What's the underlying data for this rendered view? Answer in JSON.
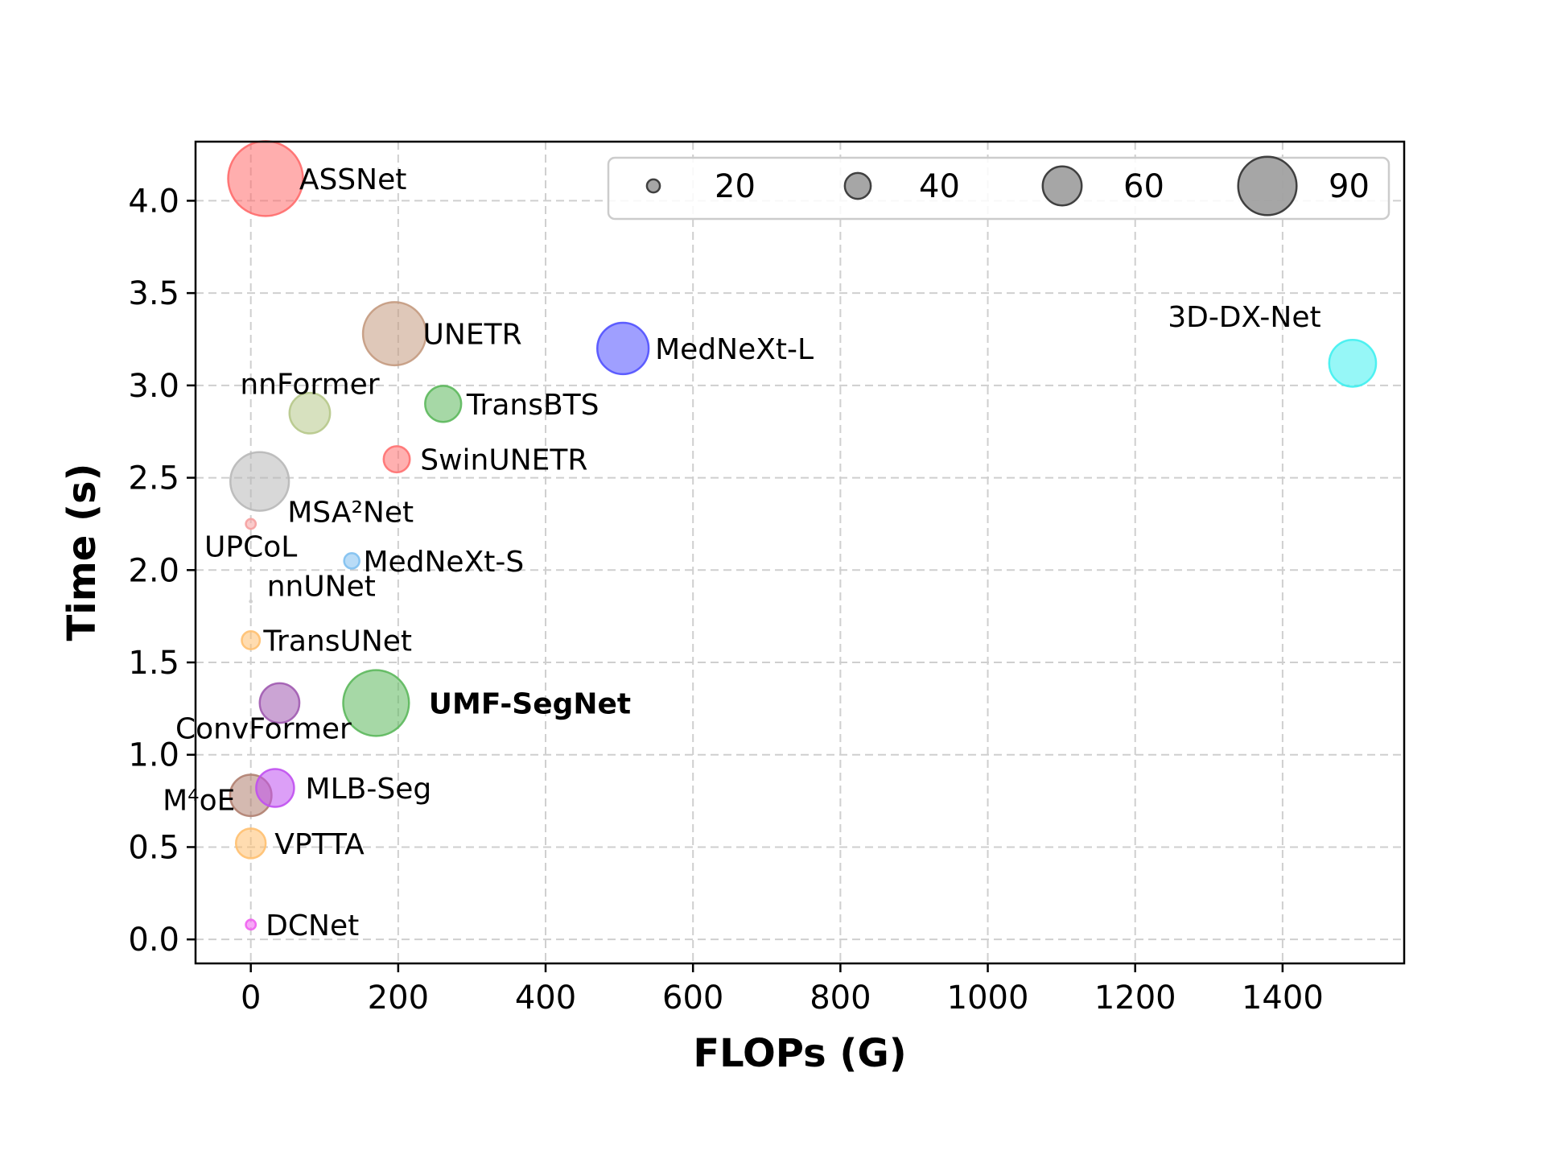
{
  "chart_data": {
    "type": "scatter",
    "subtype": "bubble",
    "title": "",
    "xlabel": "FLOPs (G)",
    "ylabel": "Time (s)",
    "xlim": [
      -75,
      1565
    ],
    "ylim": [
      -0.13,
      4.32
    ],
    "xticks": [
      0,
      200,
      400,
      600,
      800,
      1000,
      1200,
      1400
    ],
    "yticks": [
      0.0,
      0.5,
      1.0,
      1.5,
      2.0,
      2.5,
      3.0,
      3.5,
      4.0
    ],
    "grid": true,
    "legend": {
      "placement": "top-right",
      "entries": [
        {
          "label": "20",
          "size": 20
        },
        {
          "label": "40",
          "size": 40
        },
        {
          "label": "60",
          "size": 60
        },
        {
          "label": "90",
          "size": 90
        }
      ],
      "color": "#808080"
    },
    "points": [
      {
        "name": "ASSNet",
        "x": 20,
        "y": 4.12,
        "size": 83,
        "color": "#ff6b6b"
      },
      {
        "name": "UNETR",
        "x": 195,
        "y": 3.28,
        "size": 70,
        "color": "#c49a80"
      },
      {
        "name": "MedNeXt-L",
        "x": 505,
        "y": 3.2,
        "size": 57,
        "color": "#5050ff"
      },
      {
        "name": "3D-DX-Net",
        "x": 1495,
        "y": 3.12,
        "size": 52,
        "color": "#40f0f0"
      },
      {
        "name": "nnFormer",
        "x": 80,
        "y": 2.85,
        "size": 45,
        "color": "#b6c88a"
      },
      {
        "name": "TransBTS",
        "x": 261,
        "y": 2.9,
        "size": 40,
        "color": "#5cb85c"
      },
      {
        "name": "SwinUNETR",
        "x": 198,
        "y": 2.6,
        "size": 29,
        "color": "#ff7070"
      },
      {
        "name": "MSA²Net",
        "x": 12,
        "y": 2.48,
        "size": 65,
        "color": "#b8b8b8"
      },
      {
        "name": "UPCoL",
        "x": 0,
        "y": 2.25,
        "size": 11,
        "color": "#f5a0a0"
      },
      {
        "name": "MedNeXt-S",
        "x": 137,
        "y": 2.05,
        "size": 17,
        "color": "#80c0f0"
      },
      {
        "name": "nnUNet",
        "x": 0,
        "y": 1.83,
        "size": 2,
        "color": "#cccccc"
      },
      {
        "name": "TransUNet",
        "x": 0,
        "y": 1.62,
        "size": 20,
        "color": "#ffc070"
      },
      {
        "name": "ConvFormer",
        "x": 39,
        "y": 1.28,
        "size": 44,
        "color": "#a05ab0"
      },
      {
        "name": "UMF-SegNet",
        "x": 170,
        "y": 1.28,
        "size": 73,
        "color": "#5cb85c",
        "bold": true
      },
      {
        "name": "M⁴oE",
        "x": 0,
        "y": 0.78,
        "size": 46,
        "color": "#b08070"
      },
      {
        "name": "MLB-Seg",
        "x": 33,
        "y": 0.82,
        "size": 42,
        "color": "#c050f0"
      },
      {
        "name": "VPTTA",
        "x": 0,
        "y": 0.52,
        "size": 33,
        "color": "#ffc070"
      },
      {
        "name": "DCNet",
        "x": 0,
        "y": 0.08,
        "size": 11,
        "color": "#f060f0"
      }
    ]
  }
}
